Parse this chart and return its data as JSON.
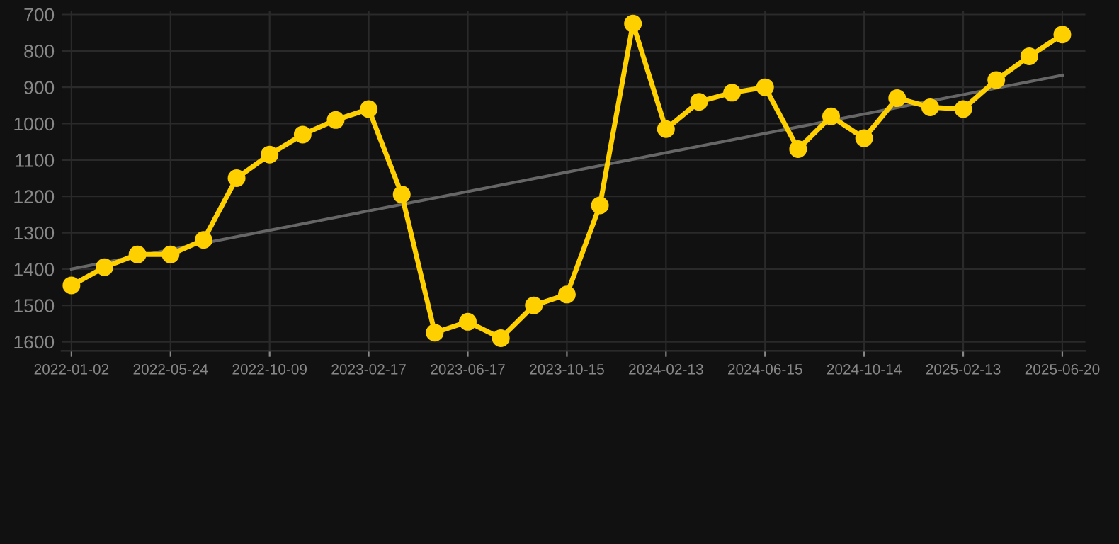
{
  "chart_data": {
    "type": "line",
    "categories": [
      "2022-01-02",
      null,
      null,
      "2022-05-24",
      null,
      null,
      "2022-10-09",
      null,
      null,
      "2023-02-17",
      null,
      null,
      "2023-06-17",
      null,
      null,
      "2023-10-15",
      null,
      null,
      "2024-02-13",
      null,
      null,
      "2024-06-15",
      null,
      null,
      "2024-10-14",
      null,
      null,
      "2025-02-13",
      null,
      null,
      "2025-06-20"
    ],
    "series": [
      {
        "color": "#ffd000",
        "marker": "circle",
        "values": [
          1445,
          1395,
          1360,
          1360,
          1320,
          1150,
          1085,
          1030,
          990,
          960,
          1195,
          1575,
          1545,
          1590,
          1500,
          1470,
          1225,
          725,
          1015,
          940,
          915,
          900,
          1070,
          980,
          1040,
          930,
          955,
          960,
          880,
          815,
          755
        ]
      },
      {
        "color": "#666666",
        "marker": "none",
        "values": [
          1400,
          null,
          null,
          null,
          null,
          null,
          null,
          null,
          null,
          null,
          null,
          null,
          null,
          null,
          null,
          null,
          null,
          null,
          null,
          null,
          null,
          null,
          null,
          null,
          null,
          null,
          null,
          null,
          null,
          null,
          867
        ]
      }
    ],
    "ylim": [
      1625,
      690
    ],
    "yticks": [
      700,
      800,
      900,
      1000,
      1100,
      1200,
      1300,
      1400,
      1500,
      1600
    ],
    "grid": true
  }
}
